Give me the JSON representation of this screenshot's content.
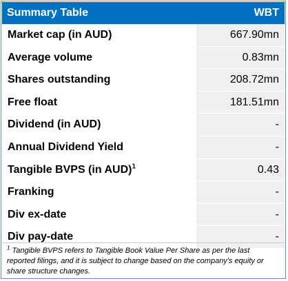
{
  "table": {
    "title": "Summary Table",
    "ticker": "WBT",
    "rows": [
      {
        "label": "Market cap (in AUD)",
        "value": "667.90mn"
      },
      {
        "label": "Average volume",
        "value": "0.83mn"
      },
      {
        "label": "Shares outstanding",
        "value": "208.72mn"
      },
      {
        "label": "Free float",
        "value": "181.51mn"
      },
      {
        "label": "Dividend (in AUD)",
        "value": "-"
      },
      {
        "label": "Annual Dividend Yield",
        "value": "-"
      },
      {
        "label": "Tangible BVPS (in AUD)",
        "sup": "1",
        "value": "0.43"
      },
      {
        "label": "Franking",
        "value": "-"
      },
      {
        "label": "Div ex-date",
        "value": "-"
      },
      {
        "label": "Div pay-date",
        "value": "-"
      }
    ]
  },
  "footnote": {
    "marker": "1",
    "text": "Tangible BVPS refers to Tangible Book Value Per Share as per the last reported filings, and it is subject to change based on the company's equity or share structure changes."
  },
  "colors": {
    "header_bg": "#0070c0",
    "value_bg": "#efefef",
    "border": "#5b8fd0"
  }
}
